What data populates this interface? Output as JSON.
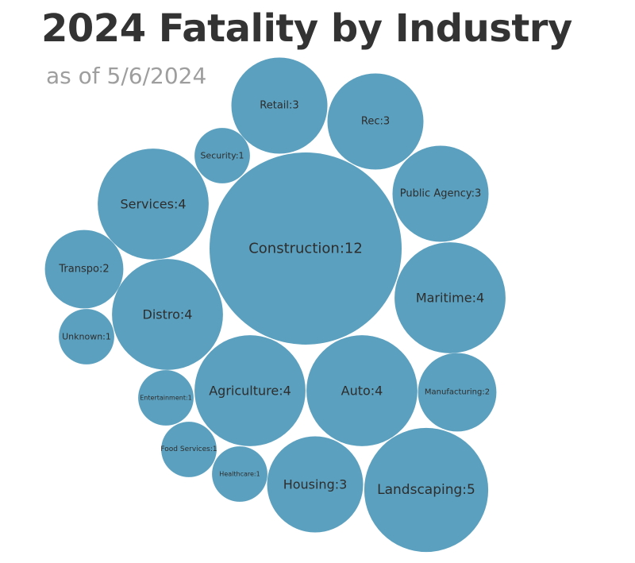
{
  "chart_data": {
    "type": "bubble",
    "title": "2024 Fatality by Industry",
    "subtitle": "as of 5/6/2024",
    "color": "#5ba0be",
    "bubbles": [
      {
        "name": "Construction",
        "value": 12,
        "label": "Construction:12"
      },
      {
        "name": "Landscaping",
        "value": 5,
        "label": "Landscaping:5"
      },
      {
        "name": "Services",
        "value": 4,
        "label": "Services:4"
      },
      {
        "name": "Maritime",
        "value": 4,
        "label": "Maritime:4"
      },
      {
        "name": "Distro",
        "value": 4,
        "label": "Distro:4"
      },
      {
        "name": "Agriculture",
        "value": 4,
        "label": "Agriculture:4"
      },
      {
        "name": "Auto",
        "value": 4,
        "label": "Auto:4"
      },
      {
        "name": "Retail",
        "value": 3,
        "label": "Retail:3"
      },
      {
        "name": "Rec",
        "value": 3,
        "label": "Rec:3"
      },
      {
        "name": "Public Agency",
        "value": 3,
        "label": "Public Agency:3"
      },
      {
        "name": "Housing",
        "value": 3,
        "label": "Housing:3"
      },
      {
        "name": "Transpo",
        "value": 2,
        "label": "Transpo:2"
      },
      {
        "name": "Manufacturing",
        "value": 2,
        "label": "Manufacturing:2"
      },
      {
        "name": "Security",
        "value": 1,
        "label": "Security:1"
      },
      {
        "name": "Unknown",
        "value": 1,
        "label": "Unknown:1"
      },
      {
        "name": "Entertainment",
        "value": 1,
        "label": "Entertainment:1"
      },
      {
        "name": "Food Services",
        "value": 1,
        "label": "Food Services:1"
      },
      {
        "name": "Healthcare",
        "value": 1,
        "label": "Healthcare:1"
      }
    ]
  }
}
